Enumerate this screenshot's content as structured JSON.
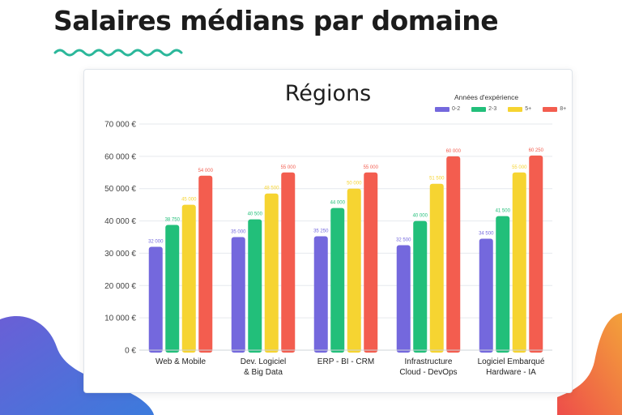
{
  "page": {
    "title": "Salaires médians par domaine"
  },
  "chart_data": {
    "type": "bar",
    "title": "Régions",
    "legend_title": "Années d'expérience",
    "legend_position": "top-right",
    "categories": [
      [
        "Web & Mobile"
      ],
      [
        "Dev. Logiciel",
        "& Big Data"
      ],
      [
        "ERP - BI - CRM"
      ],
      [
        "Infrastructure",
        "Cloud - DevOps"
      ],
      [
        "Logiciel Embarqué",
        "Hardware - IA"
      ]
    ],
    "series": [
      {
        "name": "0-2",
        "color": "#7468dd",
        "values": [
          32000,
          35000,
          35250,
          32500,
          34500
        ],
        "labels": [
          "32 000",
          "35 000",
          "35 250",
          "32 500",
          "34 500"
        ]
      },
      {
        "name": "2-3",
        "color": "#22bf7a",
        "values": [
          38750,
          40500,
          44000,
          40000,
          41500
        ],
        "labels": [
          "38 750",
          "40 500",
          "44 000",
          "40 000",
          "41 500"
        ]
      },
      {
        "name": "5+",
        "color": "#f6d431",
        "values": [
          45000,
          48500,
          50000,
          51500,
          55000
        ],
        "labels": [
          "45 000",
          "48 500",
          "50 000",
          "51 500",
          "55 000"
        ]
      },
      {
        "name": "8+",
        "color": "#f35d4f",
        "values": [
          54000,
          55000,
          55000,
          60000,
          60250
        ],
        "labels": [
          "54 000",
          "55 000",
          "55 000",
          "60 000",
          "60 250"
        ]
      }
    ],
    "ylim": [
      0,
      70000
    ],
    "yticks": [
      {
        "value": 0,
        "label": "0 €"
      },
      {
        "value": 10000,
        "label": "10 000 €"
      },
      {
        "value": 20000,
        "label": "20 000 €"
      },
      {
        "value": 30000,
        "label": "30 000 €"
      },
      {
        "value": 40000,
        "label": "40 000 €"
      },
      {
        "value": 50000,
        "label": "50 000 €"
      },
      {
        "value": 60000,
        "label": "60 000 €"
      },
      {
        "value": 70000,
        "label": "70 000 €"
      }
    ],
    "grid": true,
    "xlabel": "",
    "ylabel": ""
  },
  "decor": {
    "squiggle_color": "#2bb79a",
    "blob_left_color": "#6a5fd6",
    "blob_right_color": "#f26b3a"
  }
}
